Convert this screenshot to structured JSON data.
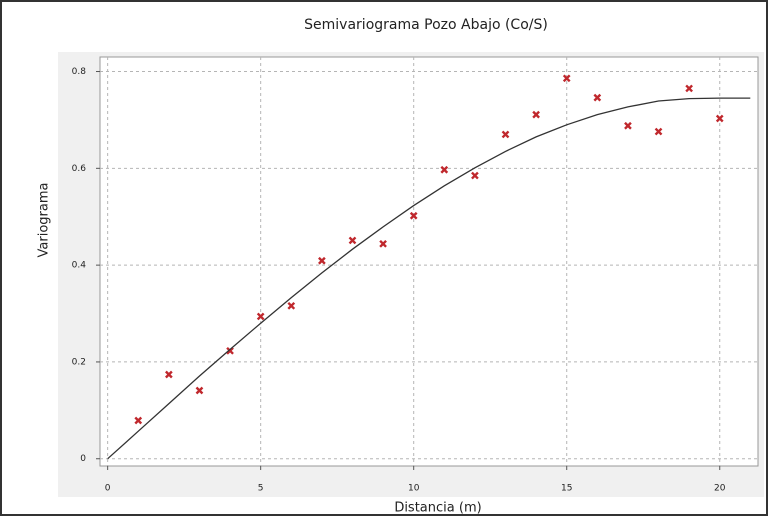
{
  "chart_data": {
    "type": "scatter",
    "title": "Semivariograma Pozo Abajo (Co/S)",
    "x_label": "Distancia (m)",
    "y_label": "Variograma",
    "xlim": [
      -0.25,
      21.25
    ],
    "ylim": [
      -0.015,
      0.83
    ],
    "xticks": [
      0,
      5,
      10,
      15,
      20
    ],
    "yticks": [
      0,
      0.2,
      0.4,
      0.6,
      0.8
    ],
    "grid": true,
    "series": [
      {
        "mode": "markers",
        "color": "#c0282d",
        "x": [
          1,
          2,
          3,
          4,
          5,
          6,
          7,
          8,
          9,
          10,
          11,
          12,
          13,
          14,
          15,
          16,
          17,
          18,
          19,
          20
        ],
        "values": [
          0.079,
          0.174,
          0.141,
          0.223,
          0.294,
          0.316,
          0.409,
          0.451,
          0.444,
          0.502,
          0.597,
          0.585,
          0.67,
          0.711,
          0.786,
          0.746,
          0.688,
          0.676,
          0.765,
          0.703
        ]
      },
      {
        "mode": "line",
        "color": "#333333",
        "x": [
          0,
          1,
          2,
          3,
          4,
          5,
          6,
          7,
          8,
          9,
          10,
          11,
          12,
          13,
          14,
          15,
          16,
          17,
          18,
          19,
          20,
          21
        ],
        "values": [
          0,
          0.057,
          0.114,
          0.171,
          0.226,
          0.28,
          0.333,
          0.384,
          0.433,
          0.479,
          0.523,
          0.564,
          0.601,
          0.635,
          0.665,
          0.69,
          0.711,
          0.727,
          0.739,
          0.744,
          0.745,
          0.745
        ]
      }
    ]
  }
}
